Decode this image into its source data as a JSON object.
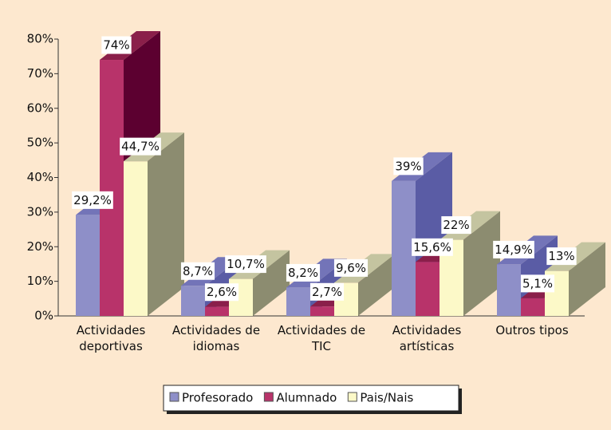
{
  "chart_data": {
    "type": "bar3d",
    "categories": [
      "Actividades deportivas",
      "Actividades de idiomas",
      "Actividades de TIC",
      "Actividades artísticas",
      "Outros tipos"
    ],
    "series": [
      {
        "name": "Profesorado",
        "color": "#8e8fc8",
        "values": [
          29.2,
          8.7,
          8.2,
          39,
          14.9
        ],
        "value_labels": [
          "29,2%",
          "8,7%",
          "8,2%",
          "39%",
          "14,9%"
        ]
      },
      {
        "name": "Alumnado",
        "color": "#b8336a",
        "values": [
          74,
          2.6,
          2.7,
          15.6,
          5.1
        ],
        "value_labels": [
          "74%",
          "2,6%",
          "2,7%",
          "15,6%",
          "5,1%"
        ]
      },
      {
        "name": "Pais/Nais",
        "color": "#fcf9c8",
        "values": [
          44.7,
          10.7,
          9.6,
          22,
          13
        ],
        "value_labels": [
          "44,7%",
          "10,7%",
          "9,6%",
          "22%",
          "13%"
        ]
      }
    ],
    "ylim": [
      0,
      80
    ],
    "yticks": [
      {
        "value": 0,
        "label": "0%"
      },
      {
        "value": 10,
        "label": "10%"
      },
      {
        "value": 20,
        "label": "20%"
      },
      {
        "value": 30,
        "label": "30%"
      },
      {
        "value": 40,
        "label": "40%"
      },
      {
        "value": 50,
        "label": "50%"
      },
      {
        "value": 60,
        "label": "60%"
      },
      {
        "value": 70,
        "label": "70%"
      },
      {
        "value": 80,
        "label": "80%"
      }
    ]
  }
}
